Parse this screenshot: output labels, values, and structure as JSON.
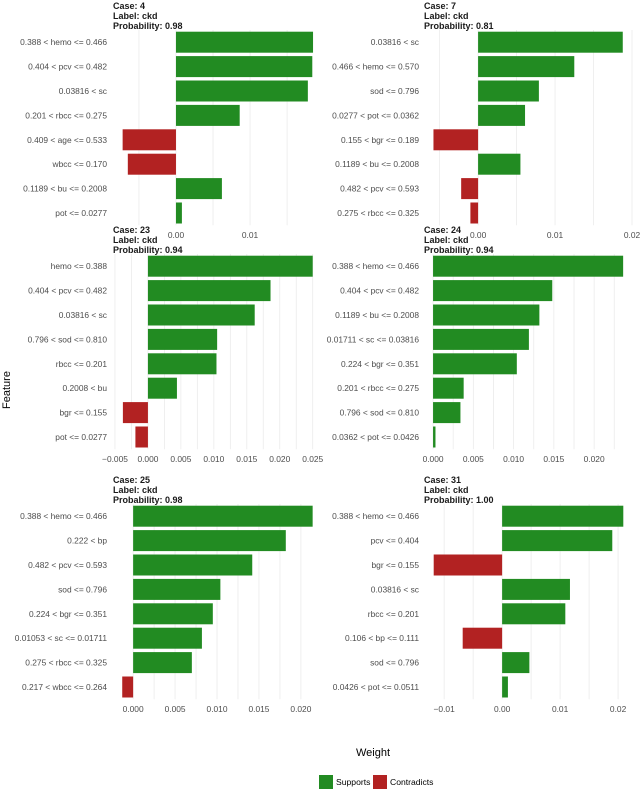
{
  "colors": {
    "supports": "#228B22",
    "contradicts": "#B22222",
    "grid": "#ebebeb"
  },
  "axis": {
    "xlabel": "Weight",
    "ylabel": "Feature"
  },
  "legend": {
    "position": "bottom",
    "items": [
      {
        "label": "Supports",
        "color": "#228B22"
      },
      {
        "label": "Contradicts",
        "color": "#B22222"
      }
    ]
  },
  "chart_data": [
    {
      "type": "bar",
      "orientation": "horizontal",
      "case": "Case: 4",
      "label": "Label: ckd",
      "probability": "Probability: 0.98",
      "xlim": [
        -0.0085,
        0.0189
      ],
      "ticks": [
        0.0,
        0.01
      ],
      "tick_labels": [
        "0.00",
        "0.01"
      ],
      "categories": [
        "0.388 < hemo <= 0.466",
        "0.404 < pcv <= 0.482",
        "0.03816 < sc",
        "0.201 < rbcc <= 0.275",
        "0.409 < age <= 0.533",
        "wbcc <= 0.170",
        "0.1189 < bu <= 0.2008",
        "pot <= 0.0277"
      ],
      "values": [
        0.0185,
        0.0184,
        0.0178,
        0.0086,
        -0.0072,
        -0.0065,
        0.0062,
        0.0008
      ]
    },
    {
      "type": "bar",
      "orientation": "horizontal",
      "case": "Case: 7",
      "label": "Label: ckd",
      "probability": "Probability: 0.81",
      "xlim": [
        -0.0069,
        0.02
      ],
      "ticks": [
        0.0,
        0.01,
        0.02
      ],
      "tick_labels": [
        "0.00",
        "0.01",
        "0.02"
      ],
      "categories": [
        "0.03816 < sc",
        "0.466 < hemo <= 0.570",
        "sod <= 0.796",
        "0.0277 < pot <= 0.0362",
        "0.155 < bgr <= 0.189",
        "0.1189 < bu <= 0.2008",
        "0.482 < pcv <= 0.593",
        "0.275 < rbcc <= 0.325"
      ],
      "values": [
        0.0188,
        0.0125,
        0.0079,
        0.0061,
        -0.0058,
        0.0055,
        -0.0022,
        -0.001
      ]
    },
    {
      "type": "bar",
      "orientation": "horizontal",
      "case": "Case: 23",
      "label": "Label: ckd",
      "probability": "Probability: 0.94",
      "xlim": [
        -0.0053,
        0.0255
      ],
      "ticks": [
        -0.005,
        0.0,
        0.005,
        0.01,
        0.015,
        0.02,
        0.025
      ],
      "tick_labels": [
        "−0.005",
        "0.000",
        "0.005",
        "0.010",
        "0.015",
        "0.020",
        "0.025"
      ],
      "categories": [
        "hemo <= 0.388",
        "0.404 < pcv <= 0.482",
        "0.03816 < sc",
        "0.796 < sod <= 0.810",
        "rbcc <= 0.201",
        "0.2008 < bu",
        "bgr <= 0.155",
        "pot <= 0.0277"
      ],
      "values": [
        0.025,
        0.0186,
        0.0162,
        0.0105,
        0.0104,
        0.0044,
        -0.0038,
        -0.0019
      ]
    },
    {
      "type": "bar",
      "orientation": "horizontal",
      "case": "Case: 24",
      "label": "Label: ckd",
      "probability": "Probability: 0.94",
      "xlim": [
        -0.001,
        0.0247
      ],
      "ticks": [
        0.0,
        0.005,
        0.01,
        0.015,
        0.02
      ],
      "tick_labels": [
        "0.000",
        "0.005",
        "0.010",
        "0.015",
        "0.020"
      ],
      "categories": [
        "0.388 < hemo <= 0.466",
        "0.404 < pcv <= 0.482",
        "0.1189 < bu <= 0.2008",
        "0.01711 < sc <= 0.03816",
        "0.224 < bgr <= 0.351",
        "0.201 < rbcc <= 0.275",
        "0.796 < sod <= 0.810",
        "0.0362 < pot <= 0.0426"
      ],
      "values": [
        0.0236,
        0.0148,
        0.0132,
        0.0119,
        0.0104,
        0.0038,
        0.0034,
        0.0003
      ]
    },
    {
      "type": "bar",
      "orientation": "horizontal",
      "case": "Case: 25",
      "label": "Label: ckd",
      "probability": "Probability: 0.98",
      "xlim": [
        -0.0024,
        0.0218
      ],
      "ticks": [
        0.0,
        0.005,
        0.01,
        0.015,
        0.02
      ],
      "tick_labels": [
        "0.000",
        "0.005",
        "0.010",
        "0.015",
        "0.020"
      ],
      "categories": [
        "0.388 < hemo <= 0.466",
        "0.222 < bp",
        "0.482 < pcv <= 0.593",
        "sod <= 0.796",
        "0.224 < bgr <= 0.351",
        "0.01053 < sc <= 0.01711",
        "0.275 < rbcc <= 0.325",
        "0.217 < wbcc <= 0.264"
      ],
      "values": [
        0.0214,
        0.0182,
        0.0142,
        0.0104,
        0.0095,
        0.0082,
        0.007,
        -0.0013
      ]
    },
    {
      "type": "bar",
      "orientation": "horizontal",
      "case": "Case: 31",
      "label": "Label: ckd",
      "probability": "Probability: 1.00",
      "xlim": [
        -0.0133,
        0.0224
      ],
      "ticks": [
        -0.01,
        0.0,
        0.01,
        0.02
      ],
      "tick_labels": [
        "−0.01",
        "0.00",
        "0.01",
        "0.02"
      ],
      "categories": [
        "0.388 < hemo <= 0.466",
        "pcv <= 0.404",
        "bgr <= 0.155",
        "0.03816 < sc",
        "rbcc <= 0.201",
        "0.106 < bp <= 0.111",
        "sod <= 0.796",
        "0.0426 < pot <= 0.0511"
      ],
      "values": [
        0.0209,
        0.019,
        -0.0118,
        0.0117,
        0.0109,
        -0.0068,
        0.0047,
        0.001
      ]
    }
  ]
}
